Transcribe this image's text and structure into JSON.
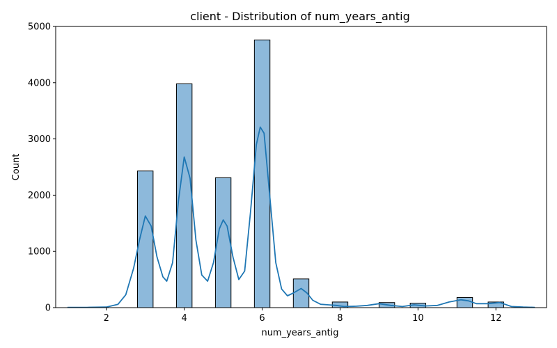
{
  "chart_data": {
    "type": "bar",
    "title": "client - Distribution of num_years_antig",
    "xlabel": "num_years_antig",
    "ylabel": "Count",
    "xlim": [
      0.7,
      13.3
    ],
    "ylim": [
      0,
      5000
    ],
    "xticks": [
      2,
      4,
      6,
      8,
      10,
      12
    ],
    "yticks": [
      0,
      1000,
      2000,
      3000,
      4000,
      5000
    ],
    "bin_width": 0.4,
    "bars": [
      {
        "x": 3,
        "value": 2430
      },
      {
        "x": 4,
        "value": 3980
      },
      {
        "x": 5,
        "value": 2310
      },
      {
        "x": 6,
        "value": 4760
      },
      {
        "x": 7,
        "value": 510
      },
      {
        "x": 8,
        "value": 100
      },
      {
        "x": 9.2,
        "value": 90
      },
      {
        "x": 10,
        "value": 80
      },
      {
        "x": 11.2,
        "value": 180
      },
      {
        "x": 12,
        "value": 100
      }
    ],
    "kde": {
      "x": [
        1.0,
        1.5,
        2.0,
        2.3,
        2.5,
        2.7,
        2.85,
        3.0,
        3.15,
        3.3,
        3.45,
        3.55,
        3.7,
        3.85,
        4.0,
        4.15,
        4.3,
        4.45,
        4.6,
        4.75,
        4.9,
        5.0,
        5.1,
        5.25,
        5.4,
        5.55,
        5.7,
        5.85,
        5.95,
        6.05,
        6.2,
        6.35,
        6.5,
        6.65,
        6.8,
        7.0,
        7.15,
        7.3,
        7.5,
        7.7,
        7.9,
        8.1,
        8.4,
        8.7,
        9.0,
        9.3,
        9.6,
        9.9,
        10.2,
        10.5,
        10.8,
        11.1,
        11.3,
        11.5,
        11.8,
        12.1,
        12.4,
        12.7,
        13.0
      ],
      "y": [
        5,
        5,
        10,
        60,
        230,
        700,
        1200,
        1630,
        1450,
        900,
        550,
        470,
        800,
        1900,
        2680,
        2300,
        1200,
        580,
        470,
        800,
        1400,
        1560,
        1450,
        900,
        500,
        650,
        1700,
        2900,
        3210,
        3100,
        1950,
        800,
        330,
        210,
        260,
        340,
        260,
        130,
        60,
        50,
        40,
        20,
        25,
        40,
        70,
        40,
        20,
        50,
        30,
        40,
        100,
        140,
        120,
        70,
        70,
        90,
        20,
        10,
        5
      ]
    },
    "bar_fill": "#8db9db",
    "bar_edge": "#000000",
    "kde_color": "#1f77b4",
    "grid": false,
    "legend": "none"
  }
}
